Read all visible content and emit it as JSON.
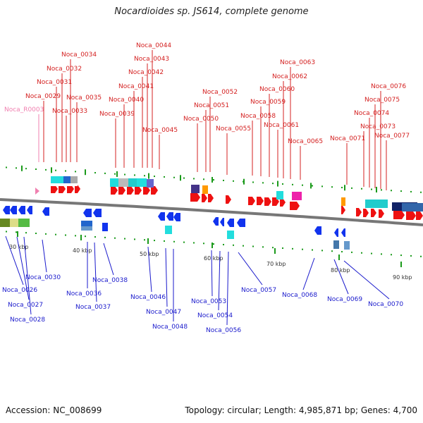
{
  "title": "Nocardioides sp. JS614, complete genome",
  "footer": {
    "accession": "Accession: NC_008699",
    "summary": "Topology: circular; Length: 4,985,871 bp; Genes: 4,700"
  },
  "colors": {
    "top_label": "#d42020",
    "bottom_label": "#1a1acc",
    "rna_label": "#f080b0",
    "forward_gene": "#ee1111",
    "reverse_gene": "#1133ee",
    "backbone": "#777777",
    "tick": "#1a9a1a"
  },
  "scale_labels": [
    "30 kbp",
    "40 kbp",
    "50 kbp",
    "60 kbp",
    "70 kbp",
    "80 kbp",
    "90 kbp"
  ],
  "top_labels": [
    "Noca_R0003",
    "Noca_0029",
    "Noca_0031",
    "Noca_0032",
    "Noca_0033",
    "Noca_0034",
    "Noca_0035",
    "Noca_0039",
    "Noca_0040",
    "Noca_0041",
    "Noca_0042",
    "Noca_0043",
    "Noca_0044",
    "Noca_0045",
    "Noca_0050",
    "Noca_0051",
    "Noca_0052",
    "Noca_0055",
    "Noca_0058",
    "Noca_0059",
    "Noca_0060",
    "Noca_0061",
    "Noca_0062",
    "Noca_0063",
    "Noca_0065",
    "Noca_0071",
    "Noca_0073",
    "Noca_0074",
    "Noca_0075",
    "Noca_0076",
    "Noca_0077"
  ],
  "bottom_labels": [
    "Noca_0026",
    "Noca_0027",
    "Noca_0028",
    "Noca_0030",
    "Noca_0036",
    "Noca_0037",
    "Noca_0038",
    "Noca_0046",
    "Noca_0047",
    "Noca_0048",
    "Noca_0053",
    "Noca_0054",
    "Noca_0056",
    "Noca_0057",
    "Noca_0068",
    "Noca_0069",
    "Noca_0070"
  ]
}
